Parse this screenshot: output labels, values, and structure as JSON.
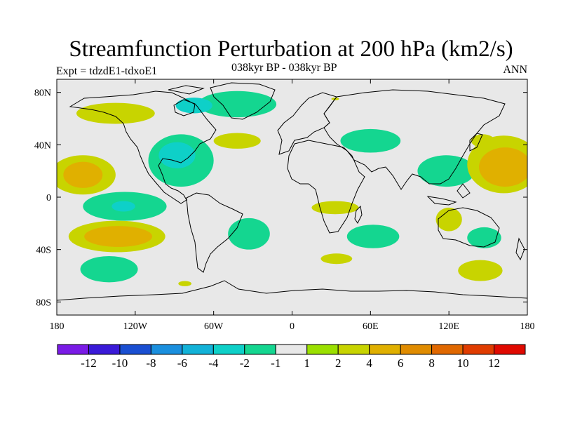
{
  "header": {
    "title": "Streamfunction Perturbation at 200 hPa (km2/s)",
    "subtitle": "038kyr BP - 038kyr BP",
    "left_label": "Expt = tdzdE1-tdxoE1",
    "right_label": "ANN"
  },
  "axes": {
    "lon_ticks": [
      "180",
      "120W",
      "60W",
      "0",
      "60E",
      "120E",
      "180"
    ],
    "lat_ticks": [
      "80N",
      "40N",
      "0",
      "40S",
      "80S"
    ]
  },
  "colorbar": {
    "colors": [
      "#7a1be6",
      "#3a1ad8",
      "#1a4fd2",
      "#1a8fde",
      "#12b2d8",
      "#0ed0c8",
      "#14d690",
      "#e8e8e8",
      "#9be000",
      "#c8d400",
      "#e0b000",
      "#e08c00",
      "#e06800",
      "#e03c00",
      "#e00a00"
    ],
    "labels": [
      "-12",
      "-10",
      "-8",
      "-6",
      "-4",
      "-2",
      "-1",
      "1",
      "2",
      "4",
      "6",
      "8",
      "10",
      "12"
    ]
  },
  "chart_data": {
    "type": "heatmap",
    "title": "Streamfunction Perturbation at 200 hPa (km2/s)",
    "subtitle": "038kyr BP - 038kyr BP",
    "projection": "cylindrical equidistant",
    "lon_range": [
      -180,
      180
    ],
    "lat_range": [
      -90,
      90
    ],
    "contour_levels": [
      -12,
      -10,
      -8,
      -6,
      -4,
      -2,
      -1,
      1,
      2,
      4,
      6,
      8,
      10,
      12
    ],
    "units": "km2/s",
    "blobs": [
      {
        "lon": -160,
        "lat": 17,
        "rlon": 25,
        "rlat": 15,
        "level": 2
      },
      {
        "lon": -160,
        "lat": 17,
        "rlon": 15,
        "rlat": 10,
        "level": 4
      },
      {
        "lon": -135,
        "lat": 64,
        "rlon": 30,
        "rlat": 8,
        "level": 2
      },
      {
        "lon": -42,
        "lat": 71,
        "rlon": 30,
        "rlat": 10,
        "level": -1
      },
      {
        "lon": -75,
        "lat": 70,
        "rlon": 14,
        "rlat": 6,
        "level": -2
      },
      {
        "lon": -42,
        "lat": 43,
        "rlon": 18,
        "rlat": 6,
        "level": 2
      },
      {
        "lon": -85,
        "lat": 28,
        "rlon": 25,
        "rlat": 20,
        "level": -1
      },
      {
        "lon": -88,
        "lat": 32,
        "rlon": 14,
        "rlat": 10,
        "level": -2
      },
      {
        "lon": -128,
        "lat": -7,
        "rlon": 32,
        "rlat": 11,
        "level": -1
      },
      {
        "lon": -129,
        "lat": -7,
        "rlon": 9,
        "rlat": 4,
        "level": -2
      },
      {
        "lon": -134,
        "lat": -30,
        "rlon": 37,
        "rlat": 12,
        "level": 2
      },
      {
        "lon": -133,
        "lat": -30,
        "rlon": 26,
        "rlat": 8,
        "level": 4
      },
      {
        "lon": -140,
        "lat": -55,
        "rlon": 22,
        "rlat": 10,
        "level": -1
      },
      {
        "lon": -82,
        "lat": -66,
        "rlon": 5,
        "rlat": 2,
        "level": 2
      },
      {
        "lon": -33,
        "lat": -28,
        "rlon": 16,
        "rlat": 12,
        "level": -1
      },
      {
        "lon": 60,
        "lat": 43,
        "rlon": 23,
        "rlat": 9,
        "level": -1
      },
      {
        "lon": 33,
        "lat": -8,
        "rlon": 18,
        "rlat": 5,
        "level": 2
      },
      {
        "lon": 34,
        "lat": -47,
        "rlon": 12,
        "rlat": 4,
        "level": 2
      },
      {
        "lon": 62,
        "lat": -30,
        "rlon": 20,
        "rlat": 9,
        "level": -1
      },
      {
        "lon": 118,
        "lat": 20,
        "rlon": 22,
        "rlat": 12,
        "level": -1
      },
      {
        "lon": 120,
        "lat": -17,
        "rlon": 10,
        "rlat": 9,
        "level": 2
      },
      {
        "lon": 147,
        "lat": -31,
        "rlon": 13,
        "rlat": 8,
        "level": -1
      },
      {
        "lon": 144,
        "lat": -56,
        "rlon": 17,
        "rlat": 8,
        "level": 2
      },
      {
        "lon": 162,
        "lat": 25,
        "rlon": 28,
        "rlat": 22,
        "level": 2
      },
      {
        "lon": 163,
        "lat": 23,
        "rlon": 20,
        "rlat": 15,
        "level": 4
      },
      {
        "lon": 146,
        "lat": 43,
        "rlon": 9,
        "rlat": 5,
        "level": 2
      },
      {
        "lon": 33,
        "lat": 75,
        "rlon": 3,
        "rlat": 1,
        "level": 2
      }
    ]
  }
}
